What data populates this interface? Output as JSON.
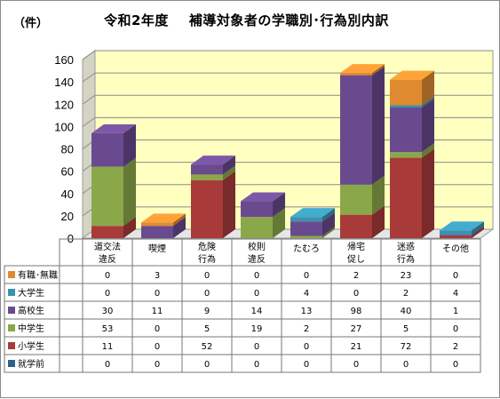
{
  "unit_label": "（件）",
  "title_left": "令和2年度",
  "title_right": "補導対象者の学職別･行為別内訳",
  "chart_data": {
    "type": "bar",
    "stacked": true,
    "three_d": true,
    "ylim": [
      0,
      160
    ],
    "yticks": [
      0,
      20,
      40,
      60,
      80,
      100,
      120,
      140,
      160
    ],
    "grid": true,
    "categories": [
      [
        "道交法",
        "違反"
      ],
      [
        "喫煙"
      ],
      [
        "危険",
        "行為"
      ],
      [
        "校則",
        "違反"
      ],
      [
        "たむろ"
      ],
      [
        "帰宅",
        "促し"
      ],
      [
        "迷惑",
        "行為"
      ],
      [
        "その他"
      ]
    ],
    "series": [
      {
        "name": "就学前",
        "color": "#2e5f8a",
        "values": [
          0,
          0,
          0,
          0,
          0,
          0,
          0,
          0
        ]
      },
      {
        "name": "小学生",
        "color": "#a83a3a",
        "values": [
          11,
          0,
          52,
          0,
          0,
          21,
          72,
          2
        ]
      },
      {
        "name": "中学生",
        "color": "#8aa84a",
        "values": [
          53,
          0,
          5,
          19,
          2,
          27,
          5,
          0
        ]
      },
      {
        "name": "高校生",
        "color": "#6a4a8e",
        "values": [
          30,
          11,
          9,
          14,
          13,
          98,
          40,
          1
        ]
      },
      {
        "name": "大学生",
        "color": "#3a92b0",
        "values": [
          0,
          0,
          0,
          0,
          4,
          0,
          2,
          4
        ]
      },
      {
        "name": "有職･無職",
        "color": "#e08a30",
        "values": [
          0,
          3,
          0,
          0,
          0,
          2,
          23,
          0
        ]
      }
    ],
    "table_row_order": [
      "有職･無職",
      "大学生",
      "高校生",
      "中学生",
      "小学生",
      "就学前"
    ]
  }
}
